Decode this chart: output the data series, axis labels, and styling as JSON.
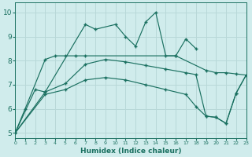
{
  "xlabel": "Humidex (Indice chaleur)",
  "line_color": "#1a7060",
  "bg_color": "#d0ecec",
  "grid_color": "#b8d8d8",
  "xlim": [
    0,
    23
  ],
  "ylim": [
    4.8,
    10.4
  ],
  "yticks": [
    5,
    6,
    7,
    8,
    9,
    10
  ],
  "xticks": [
    0,
    1,
    2,
    3,
    4,
    5,
    6,
    7,
    8,
    9,
    10,
    11,
    12,
    13,
    14,
    15,
    16,
    17,
    18,
    19,
    20,
    21,
    22,
    23
  ],
  "s1_x": [
    0,
    2,
    3,
    7,
    8,
    10,
    11,
    12,
    13,
    14,
    15,
    16,
    17,
    18
  ],
  "s1_y": [
    5.0,
    6.8,
    6.7,
    9.5,
    9.3,
    9.5,
    9.0,
    8.6,
    9.6,
    10.0,
    8.2,
    8.2,
    8.9,
    8.5
  ],
  "s2_x": [
    0,
    1,
    3,
    4,
    5,
    6,
    7,
    16,
    19,
    20,
    21,
    22,
    23
  ],
  "s2_y": [
    5.0,
    6.0,
    8.05,
    8.2,
    8.2,
    8.2,
    8.2,
    8.2,
    7.6,
    7.5,
    7.5,
    7.45,
    7.4
  ],
  "s3_x": [
    0,
    3,
    5,
    7,
    9,
    11,
    13,
    15,
    17,
    18,
    19,
    20,
    21,
    22,
    23
  ],
  "s3_y": [
    5.0,
    6.7,
    7.05,
    7.85,
    8.05,
    7.95,
    7.8,
    7.65,
    7.5,
    7.42,
    5.7,
    5.65,
    5.4,
    6.65,
    7.4
  ],
  "s4_x": [
    0,
    3,
    5,
    7,
    9,
    11,
    13,
    15,
    17,
    18,
    19,
    20,
    21,
    22,
    23
  ],
  "s4_y": [
    5.0,
    6.6,
    6.8,
    7.2,
    7.3,
    7.2,
    7.0,
    6.8,
    6.6,
    6.1,
    5.7,
    5.65,
    5.4,
    6.65,
    7.4
  ]
}
